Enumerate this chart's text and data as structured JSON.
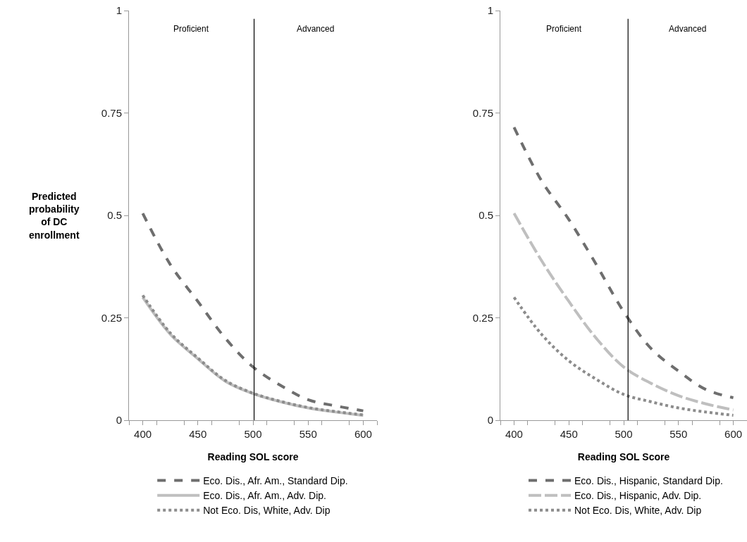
{
  "chart_data": [
    {
      "type": "line",
      "ylabel": "Predicted probability of DC enrollment",
      "xlabel": "Reading SOL score",
      "x": [
        400,
        425,
        450,
        475,
        500,
        525,
        550,
        575,
        600
      ],
      "series": [
        {
          "name": "Eco. Dis., Afr. Am., Standard Dip.",
          "color": "#6e6e6e",
          "line_style": "dashed",
          "values": [
            0.505,
            0.38,
            0.29,
            0.2,
            0.13,
            0.085,
            0.05,
            0.035,
            0.023
          ]
        },
        {
          "name": "Eco. Dis., Afr. Am., Adv. Dip.",
          "color": "#bfbfbf",
          "line_style": "solid",
          "values": [
            0.3,
            0.21,
            0.15,
            0.095,
            0.065,
            0.045,
            0.03,
            0.02,
            0.012
          ]
        },
        {
          "name": "Not Eco. Dis, White, Adv. Dip",
          "color": "#8c8c8c",
          "line_style": "dotted",
          "values": [
            0.305,
            0.213,
            0.152,
            0.097,
            0.066,
            0.046,
            0.031,
            0.021,
            0.013
          ]
        }
      ],
      "xlim": [
        387.5,
        612.5
      ],
      "xticks": [
        {
          "value": 387.5,
          "label": null
        },
        400,
        {
          "value": 412.5,
          "label": null
        },
        {
          "value": 437.5,
          "label": null
        },
        450,
        {
          "value": 462.5,
          "label": null
        },
        {
          "value": 487.5,
          "label": null
        },
        500,
        {
          "value": 512.5,
          "label": null
        },
        {
          "value": 537.5,
          "label": null
        },
        550,
        {
          "value": 562.5,
          "label": null
        },
        {
          "value": 587.5,
          "label": null
        },
        600,
        {
          "value": 612.5,
          "label": null
        }
      ],
      "ylim": [
        0,
        1
      ],
      "yticks": [
        0,
        0.25,
        0.5,
        0.75,
        1
      ],
      "ref_lines": [
        {
          "axis": "x",
          "value": 501,
          "color": "#000000"
        }
      ],
      "annotations": [
        "Proficient",
        "Advanced"
      ],
      "grid": false,
      "legend": "bottom",
      "marker": "none"
    },
    {
      "type": "line",
      "xlabel": "Reading SOL Score",
      "x": [
        400,
        425,
        450,
        475,
        500,
        525,
        550,
        575,
        600
      ],
      "series": [
        {
          "name": "Eco. Dis., Hispanic, Standard Dip.",
          "color": "#6e6e6e",
          "line_style": "dashed",
          "values": [
            0.715,
            0.585,
            0.49,
            0.38,
            0.265,
            0.175,
            0.12,
            0.075,
            0.055
          ]
        },
        {
          "name": "Eco. Dis., Hispanic, Adv. Dip.",
          "color": "#bfbfbf",
          "line_style": "longdash",
          "values": [
            0.505,
            0.39,
            0.29,
            0.2,
            0.13,
            0.09,
            0.06,
            0.04,
            0.025
          ]
        },
        {
          "name": "Not Eco. Dis, White, Adv. Dip",
          "color": "#8c8c8c",
          "line_style": "dotted",
          "values": [
            0.3,
            0.21,
            0.145,
            0.1,
            0.063,
            0.045,
            0.03,
            0.02,
            0.012
          ]
        }
      ],
      "xlim": [
        387.5,
        612.5
      ],
      "xticks": [
        {
          "value": 387.5,
          "label": null
        },
        400,
        {
          "value": 412.5,
          "label": null
        },
        {
          "value": 437.5,
          "label": null
        },
        450,
        {
          "value": 462.5,
          "label": null
        },
        {
          "value": 487.5,
          "label": null
        },
        500,
        {
          "value": 512.5,
          "label": null
        },
        {
          "value": 537.5,
          "label": null
        },
        550,
        {
          "value": 562.5,
          "label": null
        },
        {
          "value": 587.5,
          "label": null
        },
        600,
        {
          "value": 612.5,
          "label": null
        }
      ],
      "ylim": [
        0,
        1
      ],
      "yticks": [
        0,
        0.25,
        0.5,
        0.75,
        1
      ],
      "ref_lines": [
        {
          "axis": "x",
          "value": 504,
          "color": "#000000"
        }
      ],
      "annotations": [
        "Proficient",
        "Advanced"
      ],
      "grid": false,
      "legend": "bottom",
      "marker": "none"
    }
  ]
}
